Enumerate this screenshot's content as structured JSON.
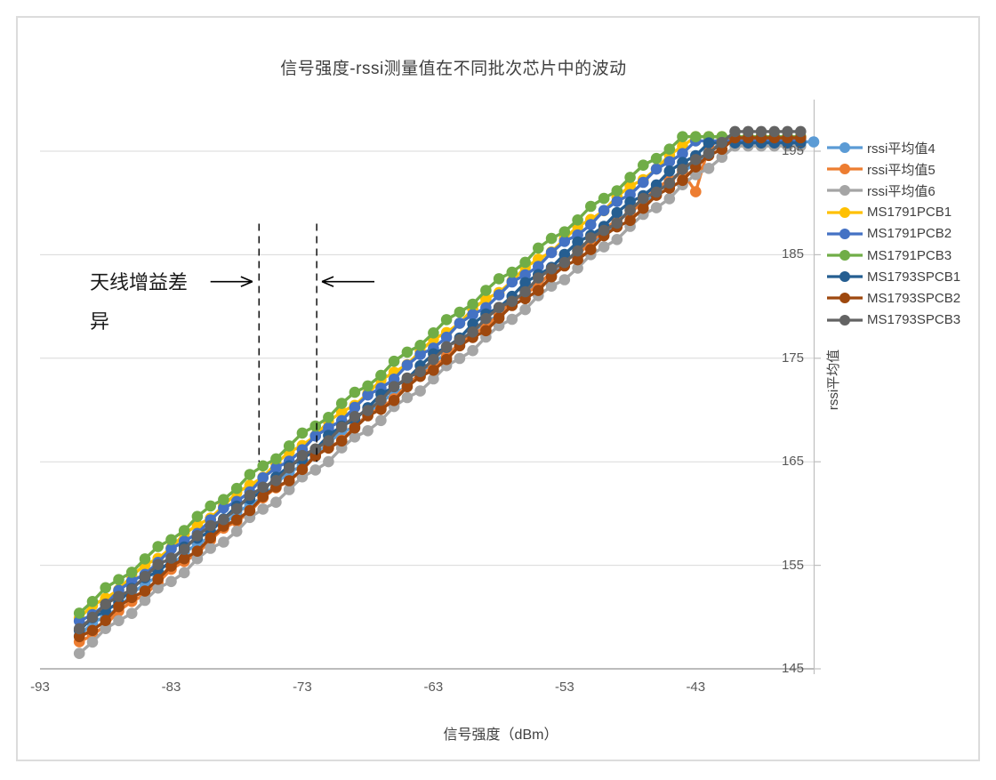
{
  "chart_data": {
    "type": "line",
    "title": "信号强度-rssi测量值在不同批次芯片中的波动",
    "xlabel": "信号强度（dBm）",
    "ylabel": "rssi平均值",
    "x_ticks": [
      -93,
      -83,
      -73,
      -63,
      -53,
      -43
    ],
    "y_ticks": [
      145,
      155,
      165,
      175,
      185,
      195
    ],
    "x_range": [
      -93,
      -34
    ],
    "y_range": [
      145,
      200
    ],
    "grid": true,
    "legend_position": "right",
    "marker": "circle",
    "x_start": -90,
    "x_step": 1,
    "series": [
      {
        "name": "rssi平均值4",
        "color": "#5B9BD5",
        "start": 148.2,
        "saturation": 195.9,
        "sat_x": -41,
        "end_x": -34
      },
      {
        "name": "rssi平均值5",
        "color": "#ED7D31",
        "start": 147.4,
        "saturation": 196.2,
        "sat_x": -41,
        "end_x": -35,
        "outlier": {
          "x": -43,
          "delta": -3.2
        }
      },
      {
        "name": "rssi平均值6",
        "color": "#A5A5A5",
        "start": 146.7,
        "saturation": 195.5,
        "sat_x": -40,
        "end_x": -35
      },
      {
        "name": "MS1791PCB1",
        "color": "#FFC000",
        "start": 149.9,
        "saturation": 196.4,
        "sat_x": -43,
        "end_x": -35
      },
      {
        "name": "MS1791PCB2",
        "color": "#4472C4",
        "start": 149.4,
        "saturation": 196.0,
        "sat_x": -43,
        "end_x": -35
      },
      {
        "name": "MS1791PCB3",
        "color": "#70AD47",
        "start": 150.6,
        "saturation": 196.4,
        "sat_x": -44,
        "end_x": -35
      },
      {
        "name": "MS1793SPCB1",
        "color": "#255E91",
        "start": 148.7,
        "saturation": 195.8,
        "sat_x": -42,
        "end_x": -35
      },
      {
        "name": "MS1793SPCB2",
        "color": "#9E480E",
        "start": 147.9,
        "saturation": 196.3,
        "sat_x": -40,
        "end_x": -35
      },
      {
        "name": "MS1793SPCB3",
        "color": "#636363",
        "start": 149.1,
        "saturation": 196.9,
        "sat_x": -40,
        "end_x": -35
      }
    ],
    "annotation": {
      "line1": "天线增益差",
      "line2": "异",
      "full_text": "天线增益差异",
      "dashed_lines_x": [
        -76.3,
        -71.9
      ],
      "dashed_lines_y_range": [
        165,
        188
      ],
      "arrows": [
        {
          "y": 182.4,
          "x_tail": -80.0,
          "x_head": -76.8
        },
        {
          "y": 182.4,
          "x_tail": -67.5,
          "x_head": -71.5
        }
      ]
    }
  },
  "colors": {
    "grid": "#D9D9D9",
    "axis": "#BFBFBF",
    "axis_dark": "#A6A6A6",
    "tick_text": "#595959",
    "title_text": "#3F3F3F",
    "legend_text": "#404040",
    "frame_border": "#DCDCDC",
    "annotation": "#1A1A1A"
  }
}
